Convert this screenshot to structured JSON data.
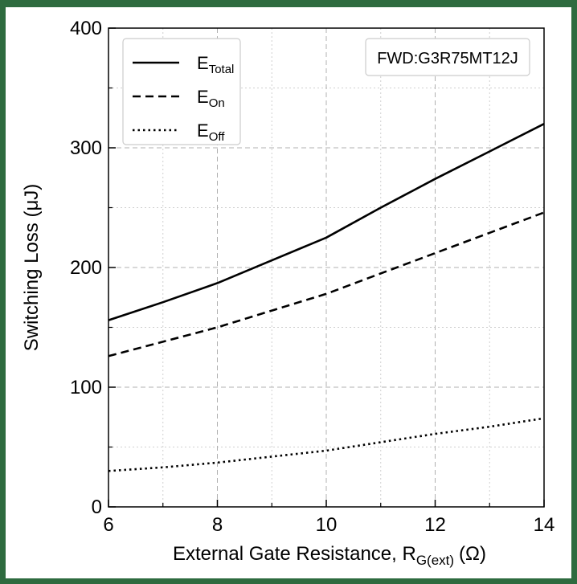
{
  "chart_data": {
    "type": "line",
    "title": "",
    "xlabel": "External Gate Resistance, R",
    "xlabel_sub": "G(ext)",
    "xlabel_unit": "(Ω)",
    "ylabel": "Switching Loss (μJ)",
    "xlim": [
      6,
      14
    ],
    "ylim": [
      0,
      400
    ],
    "xticks": [
      6,
      8,
      10,
      12,
      14
    ],
    "yticks": [
      0,
      100,
      200,
      300,
      400
    ],
    "grid": true,
    "legend_position": "top-left",
    "annotation": "FWD:G3R75MT12J",
    "series": [
      {
        "name": "E",
        "name_sub": "Total",
        "style": "solid",
        "x": [
          6,
          7,
          8,
          9,
          10,
          11,
          12,
          13,
          14
        ],
        "y": [
          156,
          171,
          187,
          206,
          225,
          250,
          274,
          297,
          320
        ]
      },
      {
        "name": "E",
        "name_sub": "On",
        "style": "dashed",
        "x": [
          6,
          7,
          8,
          9,
          10,
          11,
          12,
          13,
          14
        ],
        "y": [
          126,
          138,
          150,
          164,
          178,
          195,
          212,
          229,
          246
        ]
      },
      {
        "name": "E",
        "name_sub": "Off",
        "style": "dotted",
        "x": [
          6,
          7,
          8,
          9,
          10,
          11,
          12,
          13,
          14
        ],
        "y": [
          30,
          33,
          37,
          42,
          47,
          54,
          61,
          67,
          74
        ]
      }
    ]
  },
  "colors": {
    "frame": "#2e6b3f",
    "line": "#000000",
    "grid_major": "#b0b0b0",
    "grid_minor": "#cfcfcf"
  }
}
